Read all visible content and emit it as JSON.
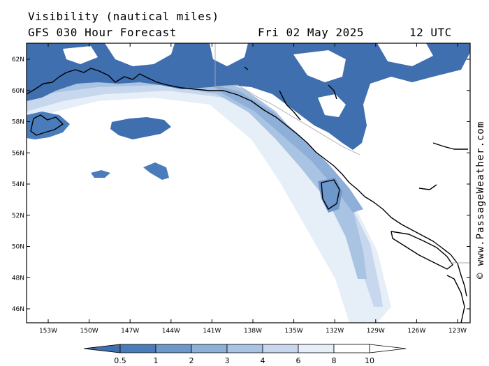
{
  "header": {
    "title_line1": "Visibility (nautical miles)",
    "title_line2": "GFS 030 Hour Forecast",
    "date": "Fri 02 May 2025",
    "time": "12 UTC"
  },
  "credit": "© www.PassageWeather.com",
  "map": {
    "lat_ticks": [
      "62N",
      "60N",
      "58N",
      "56N",
      "54N",
      "52N",
      "50N",
      "48N",
      "46N"
    ],
    "lon_ticks": [
      "153W",
      "150W",
      "147W",
      "144W",
      "141W",
      "138W",
      "135W",
      "132W",
      "129W",
      "126W",
      "123W"
    ]
  },
  "legend": {
    "labels": [
      "0.5",
      "1",
      "2",
      "3",
      "4",
      "6",
      "8",
      "10"
    ],
    "colors": [
      "#3f6faf",
      "#4a7cbc",
      "#6e97cb",
      "#8eafd8",
      "#a9c3e3",
      "#c7d8ee",
      "#e6eef8",
      "#ffffff"
    ]
  }
}
